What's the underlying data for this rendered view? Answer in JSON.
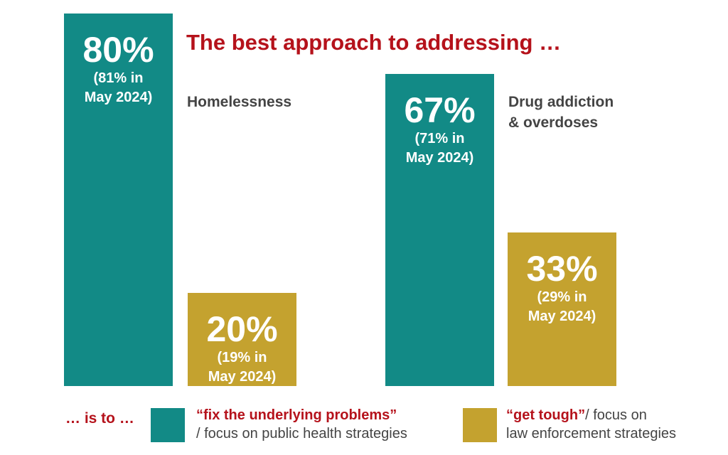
{
  "chart_data": {
    "type": "bar",
    "title": "The best approach to addressing …",
    "categories": [
      "Homelessness",
      "Drug addiction\n& overdoses"
    ],
    "series": [
      {
        "name": "“fix the underlying problems”",
        "description": "/ focus on public health strategies",
        "color": "#128a86",
        "values": [
          80,
          67
        ],
        "display": [
          "80%",
          "67%"
        ],
        "notes": [
          "(81% in\nMay 2024)",
          "(71% in\nMay 2024)"
        ]
      },
      {
        "name": "“get tough”",
        "description": "/ focus on law enforcement strategies",
        "description_lines": [
          "/ focus on",
          "law enforcement strategies"
        ],
        "color": "#c4a22f",
        "values": [
          20,
          33
        ],
        "display": [
          "20%",
          "33%"
        ],
        "notes": [
          "(19% in\nMay 2024)",
          "(29% in\nMay 2024)"
        ]
      }
    ],
    "ylim": [
      0,
      100
    ],
    "xlabel": "",
    "ylabel": "",
    "grid": false,
    "legend": "bottom"
  },
  "legend_lead": "… is to …"
}
